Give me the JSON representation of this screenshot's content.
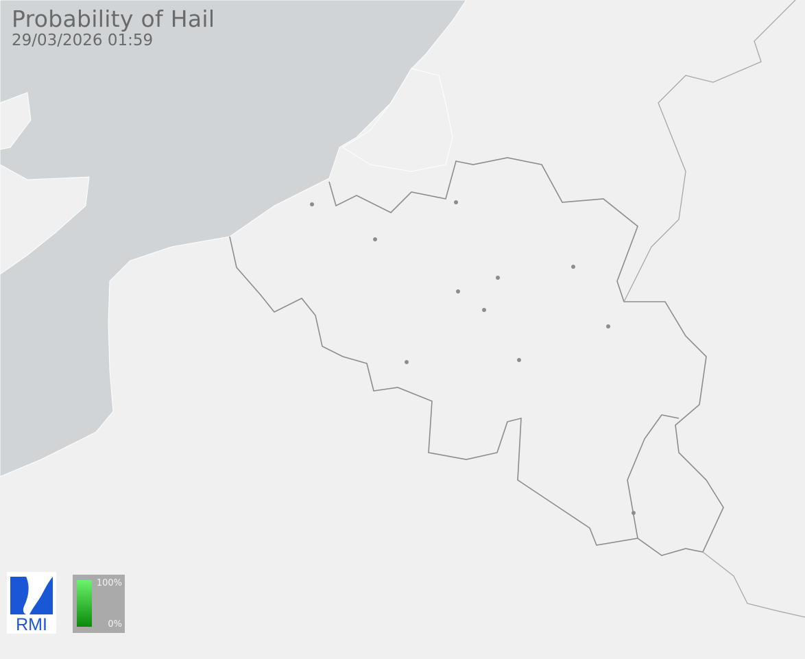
{
  "header": {
    "title": "Probability of Hail",
    "timestamp": "29/03/2026 01:59"
  },
  "legend": {
    "max_label": "100%",
    "min_label": "0%",
    "color_high": "#6cf26c",
    "color_low": "#0a8a0a"
  },
  "logo": {
    "text": "RMI",
    "color": "#1a57d6"
  },
  "colors": {
    "land": "#eff0ef",
    "sea": "#d1d4d6",
    "border": "#8a8c8d",
    "city": "#8a8c8d"
  },
  "hail_cells": []
}
